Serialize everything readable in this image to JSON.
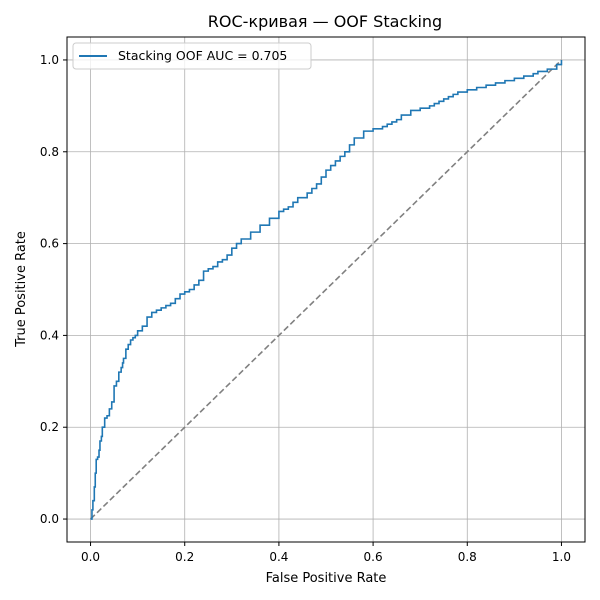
{
  "chart_data": {
    "type": "line",
    "title": "ROC-кривая — OOF Stacking",
    "xlabel": "False Positive Rate",
    "ylabel": "True Positive Rate",
    "xlim": [
      -0.05,
      1.05
    ],
    "ylim": [
      -0.05,
      1.05
    ],
    "xticks": [
      "0.0",
      "0.2",
      "0.4",
      "0.6",
      "0.8",
      "1.0"
    ],
    "yticks": [
      "0.0",
      "0.2",
      "0.4",
      "0.6",
      "0.8",
      "1.0"
    ],
    "grid": true,
    "legend_position": "upper-left",
    "series": [
      {
        "name": "Stacking OOF AUC = 0.705",
        "color": "#1f77b4",
        "style": "solid-step",
        "x": [
          0.0,
          0.003,
          0.005,
          0.008,
          0.01,
          0.012,
          0.015,
          0.018,
          0.02,
          0.023,
          0.025,
          0.03,
          0.035,
          0.04,
          0.045,
          0.05,
          0.055,
          0.06,
          0.065,
          0.068,
          0.07,
          0.075,
          0.08,
          0.085,
          0.09,
          0.095,
          0.1,
          0.11,
          0.12,
          0.13,
          0.14,
          0.15,
          0.16,
          0.17,
          0.18,
          0.19,
          0.2,
          0.21,
          0.22,
          0.23,
          0.24,
          0.25,
          0.26,
          0.27,
          0.28,
          0.29,
          0.3,
          0.31,
          0.32,
          0.34,
          0.36,
          0.38,
          0.4,
          0.41,
          0.42,
          0.43,
          0.44,
          0.46,
          0.47,
          0.48,
          0.49,
          0.5,
          0.51,
          0.52,
          0.53,
          0.54,
          0.55,
          0.56,
          0.58,
          0.6,
          0.62,
          0.63,
          0.64,
          0.65,
          0.66,
          0.68,
          0.7,
          0.72,
          0.73,
          0.74,
          0.75,
          0.76,
          0.77,
          0.78,
          0.8,
          0.82,
          0.84,
          0.86,
          0.88,
          0.9,
          0.92,
          0.94,
          0.95,
          0.97,
          0.99,
          1.0
        ],
        "y": [
          0.0,
          0.02,
          0.04,
          0.07,
          0.1,
          0.13,
          0.135,
          0.15,
          0.17,
          0.18,
          0.2,
          0.22,
          0.225,
          0.24,
          0.255,
          0.29,
          0.3,
          0.32,
          0.33,
          0.34,
          0.35,
          0.37,
          0.38,
          0.39,
          0.395,
          0.4,
          0.41,
          0.42,
          0.44,
          0.45,
          0.455,
          0.46,
          0.465,
          0.47,
          0.48,
          0.49,
          0.495,
          0.5,
          0.51,
          0.52,
          0.54,
          0.545,
          0.55,
          0.56,
          0.565,
          0.575,
          0.59,
          0.6,
          0.61,
          0.625,
          0.64,
          0.655,
          0.67,
          0.675,
          0.68,
          0.69,
          0.7,
          0.71,
          0.72,
          0.73,
          0.745,
          0.76,
          0.77,
          0.78,
          0.79,
          0.8,
          0.815,
          0.83,
          0.845,
          0.85,
          0.855,
          0.86,
          0.865,
          0.87,
          0.88,
          0.89,
          0.895,
          0.9,
          0.905,
          0.91,
          0.915,
          0.92,
          0.925,
          0.93,
          0.935,
          0.94,
          0.945,
          0.95,
          0.955,
          0.96,
          0.965,
          0.97,
          0.975,
          0.98,
          0.99,
          1.0
        ]
      },
      {
        "name": "",
        "color": "#808080",
        "style": "dashed",
        "x": [
          0.0,
          1.0
        ],
        "y": [
          0.0,
          1.0
        ]
      }
    ]
  }
}
